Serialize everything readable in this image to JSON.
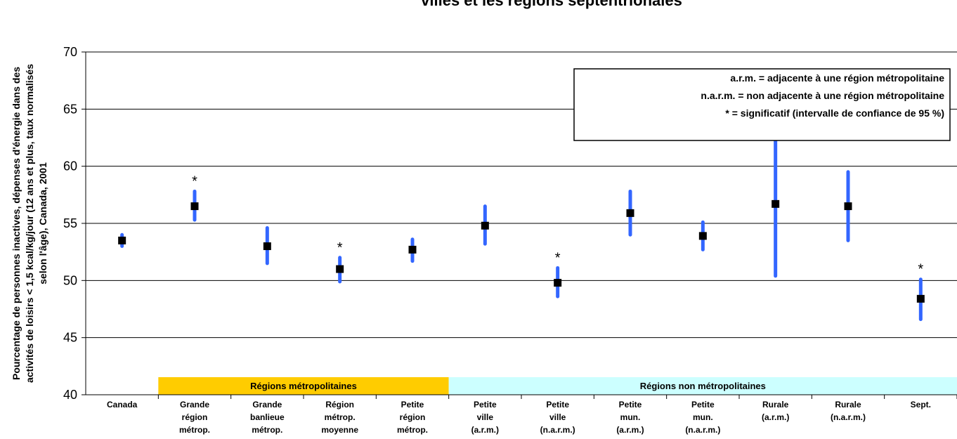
{
  "chart_data": {
    "type": "scatter",
    "title": "villes et les régions septentrionales",
    "ylabel_lines": [
      "Pourcentage de personnes inactives, dépenses d'énergie dans des",
      "activités de loisirs < 1,5 kcal/kg/jour (12 ans et plus, taux normalisés",
      "selon l'âge), Canada, 2001"
    ],
    "ylim": [
      40,
      70
    ],
    "yticks": [
      "40",
      "45",
      "50",
      "55",
      "60",
      "65",
      "70"
    ],
    "grid": true,
    "categories": [
      {
        "label": [
          "Canada"
        ],
        "value": 53.5,
        "low": 53.0,
        "high": 54.0,
        "significant": false
      },
      {
        "label": [
          "Grande",
          "région",
          "métrop."
        ],
        "value": 56.5,
        "low": 55.3,
        "high": 57.8,
        "significant": true
      },
      {
        "label": [
          "Grande",
          "banlieue",
          "métrop."
        ],
        "value": 53.0,
        "low": 51.5,
        "high": 54.6,
        "significant": false
      },
      {
        "label": [
          "Région",
          "métrop.",
          "moyenne"
        ],
        "value": 51.0,
        "low": 49.9,
        "high": 52.0,
        "significant": true
      },
      {
        "label": [
          "Petite",
          "région",
          "métrop."
        ],
        "value": 52.7,
        "low": 51.7,
        "high": 53.6,
        "significant": false
      },
      {
        "label": [
          "Petite",
          "ville",
          "(a.r.m.)"
        ],
        "value": 54.8,
        "low": 53.2,
        "high": 56.5,
        "significant": false
      },
      {
        "label": [
          "Petite",
          "ville",
          "(n.a.r.m.)"
        ],
        "value": 49.8,
        "low": 48.6,
        "high": 51.1,
        "significant": true
      },
      {
        "label": [
          "Petite",
          "mun.",
          "(a.r.m.)"
        ],
        "value": 55.9,
        "low": 54.0,
        "high": 57.8,
        "significant": false
      },
      {
        "label": [
          "Petite",
          "mun.",
          "(n.a.r.m.)"
        ],
        "value": 53.9,
        "low": 52.7,
        "high": 55.1,
        "significant": false
      },
      {
        "label": [
          "Rurale",
          "(a.r.m.)"
        ],
        "value": 56.7,
        "low": 50.4,
        "high": 63.0,
        "significant": false
      },
      {
        "label": [
          "Rurale",
          "(n.a.r.m.)"
        ],
        "value": 56.5,
        "low": 53.5,
        "high": 59.5,
        "significant": false
      },
      {
        "label": [
          "Sept."
        ],
        "value": 48.4,
        "low": 46.6,
        "high": 50.1,
        "significant": true
      }
    ],
    "significance_marker": "*",
    "groups": [
      {
        "label": "Régions métropolitaines",
        "color": "#ffcc00",
        "from": 1,
        "to": 4
      },
      {
        "label": "Régions non métropolitaines",
        "color": "#ccffff",
        "from": 5,
        "to": 11
      }
    ],
    "legend": {
      "placement": "top-right",
      "lines": [
        "a.r.m. = adjacente à une région métropolitaine",
        "n.a.r.m. = non adjacente à une région métropolitaine",
        "* = significatif (intervalle de confiance de 95 %)"
      ]
    },
    "colors": {
      "interval": "#3366ff",
      "marker": "#000000"
    }
  }
}
